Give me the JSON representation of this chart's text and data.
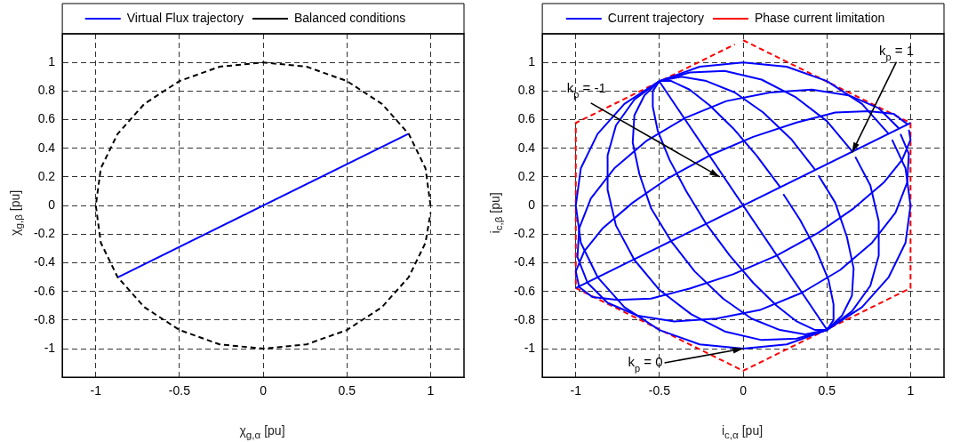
{
  "chart_data": [
    {
      "type": "line",
      "xlabel": "χ$_{g,α}$ [pu]",
      "ylabel": "χ$_{g,β}$ [pu]",
      "xlim": [
        -1.2,
        1.2
      ],
      "ylim": [
        -1.2,
        1.2
      ],
      "xticks": [
        -1,
        -0.5,
        0,
        0.5,
        1
      ],
      "yticks": [
        -1,
        -0.8,
        -0.6,
        -0.4,
        -0.2,
        0,
        0.2,
        0.4,
        0.6,
        0.8,
        1
      ],
      "grid": true,
      "legend": "top",
      "marker": "none",
      "series": [
        {
          "name": "Virtual Flux trajectory",
          "color": "#0000ff",
          "x": [
            -0.866,
            0.866
          ],
          "values": [
            -0.5,
            0.5
          ]
        },
        {
          "name": "Balanced conditions",
          "color": "#000000",
          "line_style": "dashed",
          "x": [
            1,
            0.97,
            0.87,
            0.71,
            0.5,
            0.26,
            0,
            -0.26,
            -0.5,
            -0.71,
            -0.87,
            -0.97,
            -1,
            -0.97,
            -0.87,
            -0.71,
            -0.5,
            -0.26,
            0,
            0.26,
            0.5,
            0.71,
            0.87,
            0.97,
            1
          ],
          "values": [
            0,
            0.26,
            0.5,
            0.71,
            0.87,
            0.97,
            1,
            0.97,
            0.87,
            0.71,
            0.5,
            0.26,
            0,
            -0.26,
            -0.5,
            -0.71,
            -0.87,
            -0.97,
            -1,
            -0.97,
            -0.87,
            -0.71,
            -0.5,
            -0.26,
            -0.05
          ]
        }
      ]
    },
    {
      "type": "line",
      "xlabel": "i$_{c,α}$ [pu]",
      "ylabel": "i$_{c,β}$ [pu]",
      "xlim": [
        -1.2,
        1.2
      ],
      "ylim": [
        -1.2,
        1.2
      ],
      "xticks": [
        -1,
        -0.5,
        0,
        0.5,
        1
      ],
      "yticks": [
        -1,
        -0.8,
        -0.6,
        -0.4,
        -0.2,
        0,
        0.2,
        0.4,
        0.6,
        0.8,
        1
      ],
      "grid": true,
      "legend": "top",
      "marker": "none",
      "annotations": [
        {
          "text": "k$_{p}$ = 1",
          "x": 0.65,
          "y": 0.37
        },
        {
          "text": "k$_{p}$ = -1",
          "x": -0.14,
          "y": 0.2
        },
        {
          "text": "k$_{p}$ = 0",
          "x": 0,
          "y": -1
        }
      ],
      "series": [
        {
          "name": "Current trajectory",
          "color": "#0000ff",
          "x": [
            -1,
            1
          ],
          "values": [
            -0.577,
            0.577
          ]
        },
        {
          "color": "#0000ff",
          "x": [
            -0.5,
            0.5
          ],
          "values": [
            0.866,
            -0.866
          ]
        },
        {
          "color": "#0000ff",
          "x": [
            0.22,
            0.08,
            -0.06,
            -0.2,
            -0.32,
            -0.43,
            -0.5,
            -0.54,
            -0.54,
            -0.51,
            -0.44,
            -0.34,
            -0.22,
            -0.08,
            0.06,
            0.2,
            0.32,
            0.43,
            0.5,
            0.54,
            0.54,
            0.51,
            0.44,
            0.34,
            0.24
          ],
          "values": [
            0.13,
            0.35,
            0.54,
            0.7,
            0.81,
            0.87,
            0.87,
            0.8,
            0.69,
            0.52,
            0.32,
            0.1,
            -0.13,
            -0.35,
            -0.54,
            -0.7,
            -0.81,
            -0.87,
            -0.87,
            -0.8,
            -0.69,
            -0.52,
            -0.32,
            -0.1,
            0.08
          ]
        },
        {
          "color": "#0000ff",
          "x": [
            0.43,
            0.29,
            0.12,
            -0.05,
            -0.22,
            -0.37,
            -0.5,
            -0.59,
            -0.65,
            -0.66,
            -0.62,
            -0.55,
            -0.43,
            -0.29,
            -0.12,
            0.05,
            0.22,
            0.37,
            0.5,
            0.59,
            0.65,
            0.66,
            0.62,
            0.55,
            0.45
          ],
          "values": [
            0.25,
            0.46,
            0.65,
            0.79,
            0.87,
            0.9,
            0.87,
            0.77,
            0.63,
            0.44,
            0.22,
            -0.02,
            -0.25,
            -0.46,
            -0.65,
            -0.79,
            -0.87,
            -0.9,
            -0.87,
            -0.77,
            -0.63,
            -0.44,
            -0.22,
            0.02,
            0.21
          ]
        },
        {
          "color": "#0000ff",
          "x": [
            0.65,
            0.5,
            0.31,
            0.11,
            -0.11,
            -0.32,
            -0.5,
            -0.65,
            -0.76,
            -0.81,
            -0.81,
            -0.76,
            -0.65,
            -0.5,
            -0.31,
            -0.11,
            0.11,
            0.32,
            0.5,
            0.65,
            0.76,
            0.81,
            0.81,
            0.76,
            0.67
          ],
          "values": [
            0.38,
            0.59,
            0.76,
            0.88,
            0.94,
            0.93,
            0.87,
            0.74,
            0.56,
            0.35,
            0.11,
            -0.14,
            -0.38,
            -0.59,
            -0.76,
            -0.88,
            -0.94,
            -0.93,
            -0.87,
            -0.74,
            -0.56,
            -0.35,
            -0.11,
            0.14,
            0.34
          ]
        },
        {
          "color": "#0000ff",
          "x": [
            0.87,
            0.71,
            0.5,
            0.26,
            0,
            -0.26,
            -0.5,
            -0.71,
            -0.87,
            -0.97,
            -1,
            -0.97,
            -0.87,
            -0.71,
            -0.5,
            -0.26,
            0,
            0.26,
            0.5,
            0.71,
            0.87,
            0.97,
            1,
            0.97,
            0.89
          ],
          "values": [
            0.5,
            0.71,
            0.87,
            0.97,
            1,
            0.97,
            0.87,
            0.71,
            0.5,
            0.26,
            0,
            -0.26,
            -0.5,
            -0.71,
            -0.87,
            -0.97,
            -1,
            -0.97,
            -0.87,
            -0.71,
            -0.5,
            -0.26,
            0,
            0.26,
            0.46
          ]
        },
        {
          "color": "#0000ff",
          "x": [
            0.93,
            0.81,
            0.63,
            0.41,
            0.16,
            -0.1,
            -0.35,
            -0.58,
            -0.77,
            -0.91,
            -0.98,
            -0.99,
            -0.93,
            -0.81,
            -0.63,
            -0.41,
            -0.16,
            0.1,
            0.35,
            0.58,
            0.77,
            0.91,
            0.98,
            0.99,
            0.94
          ],
          "values": [
            0.54,
            0.68,
            0.77,
            0.81,
            0.79,
            0.73,
            0.61,
            0.45,
            0.26,
            0.05,
            -0.16,
            -0.36,
            -0.54,
            -0.68,
            -0.77,
            -0.81,
            -0.79,
            -0.73,
            -0.61,
            -0.45,
            -0.26,
            -0.05,
            0.16,
            0.36,
            0.5
          ]
        },
        {
          "color": "#0000ff",
          "x": [
            0.98,
            0.9,
            0.75,
            0.55,
            0.32,
            0.06,
            -0.2,
            -0.45,
            -0.66,
            -0.84,
            -0.95,
            -1,
            -0.98,
            -0.9,
            -0.75,
            -0.55,
            -0.32,
            -0.06,
            0.2,
            0.45,
            0.66,
            0.84,
            0.95,
            1,
            0.99
          ],
          "values": [
            0.57,
            0.64,
            0.66,
            0.65,
            0.58,
            0.48,
            0.35,
            0.19,
            0.02,
            -0.16,
            -0.32,
            -0.46,
            -0.57,
            -0.64,
            -0.66,
            -0.65,
            -0.58,
            -0.48,
            -0.35,
            -0.19,
            -0.02,
            0.16,
            0.32,
            0.46,
            0.53
          ]
        },
        {
          "name": "Phase current limitation",
          "color": "#ff0000",
          "line_style": "dashed",
          "x": [
            0,
            1,
            1,
            0,
            -1,
            -1,
            -0.05
          ],
          "values": [
            1.155,
            0.577,
            -0.577,
            -1.155,
            -0.577,
            0.577,
            1.126
          ]
        }
      ]
    }
  ]
}
